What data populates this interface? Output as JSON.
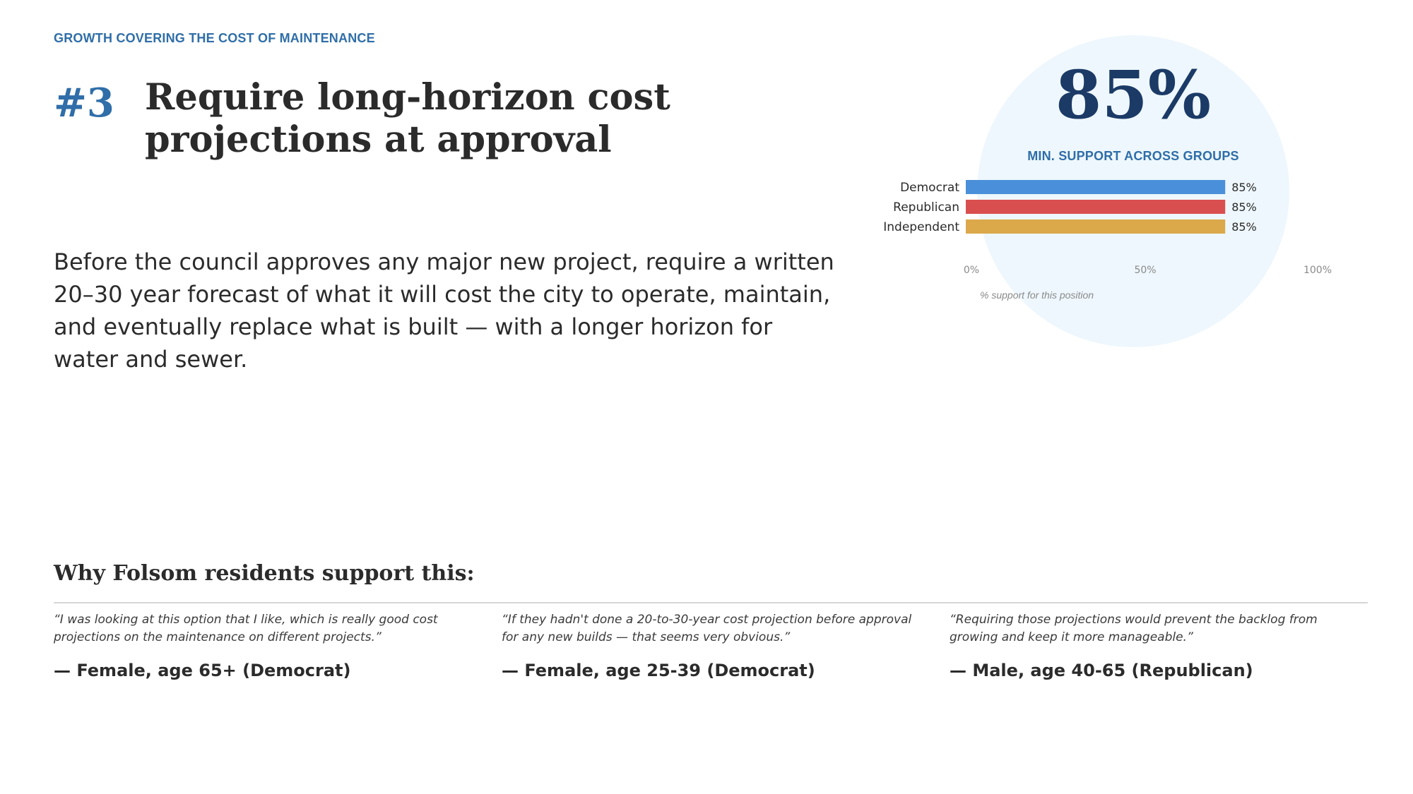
{
  "header": {
    "eyebrow": "GROWTH COVERING THE COST OF MAINTENANCE",
    "rank": "#3",
    "title": "Require long-horizon cost projections at approval"
  },
  "description": "Before the council approves any major new project, require a written 20–30 year forecast of what it will cost the city to operate, maintain, and eventually replace what is built — with a longer horizon for water and sewer.",
  "support_panel": {
    "big_stat": "85%",
    "big_stat_label": "MIN. SUPPORT ACROSS GROUPS",
    "axis_caption": "% support for this position"
  },
  "chart_data": {
    "type": "bar",
    "orientation": "horizontal",
    "categories": [
      "Democrat",
      "Republican",
      "Independent"
    ],
    "values": [
      85,
      85,
      85
    ],
    "value_labels": [
      "85%",
      "85%",
      "85%"
    ],
    "colors": [
      "#4a8fd9",
      "#d94f50",
      "#dba84a"
    ],
    "xlim": [
      0,
      100
    ],
    "xticks": [
      0,
      50,
      100
    ],
    "xtick_labels": [
      "0%",
      "50%",
      "100%"
    ],
    "xlabel": "% support for this position",
    "grid": false
  },
  "quotes_section": {
    "title": "Why Folsom residents support this:",
    "quotes": [
      {
        "text": "“I was looking at this option that I like, which is really good cost projections on the maintenance on different projects.”",
        "attribution": "— Female, age 65+ (Democrat)"
      },
      {
        "text": "“If they hadn't done a 20-to-30-year cost projection before approval for any new builds — that seems very obvious.”",
        "attribution": "— Female, age 25-39 (Democrat)"
      },
      {
        "text": "“Requiring those projections would prevent the backlog from growing and keep it more manageable.”",
        "attribution": "— Male, age 40-65 (Republican)"
      }
    ]
  }
}
